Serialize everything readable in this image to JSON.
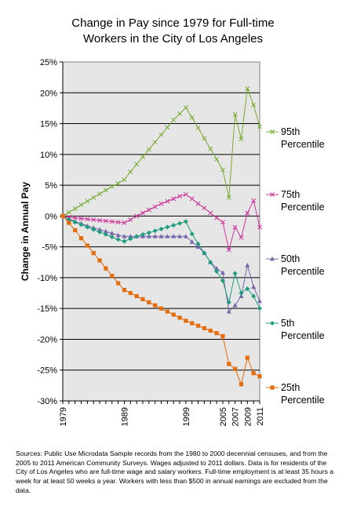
{
  "chart_data": {
    "type": "line",
    "title_lines": [
      "Change in Pay since 1979 for Full-time",
      "Workers in the City of Los Angeles"
    ],
    "ylabel": "Change in Annual Pay",
    "xlabel": "",
    "ylim": [
      -30,
      25
    ],
    "y_ticks": [
      25,
      20,
      15,
      10,
      5,
      0,
      -5,
      -10,
      -15,
      -20,
      -25,
      -30
    ],
    "y_tick_labels": [
      "25%",
      "20%",
      "15%",
      "10%",
      "5%",
      "0%",
      "-5%",
      "-10%",
      "-15%",
      "-20%",
      "-25%",
      "-30%"
    ],
    "x_ticks": [
      1979,
      1989,
      1999,
      2005,
      2007,
      2009,
      2011
    ],
    "x_tick_labels": [
      "1979",
      "1989",
      "1999",
      "2005",
      "2007",
      "2009",
      "2011"
    ],
    "grid": true,
    "legend_position": "right",
    "series": [
      {
        "name_lines": [
          "95th",
          "Percentile"
        ],
        "color": "#77AC30",
        "marker": "x",
        "x": [
          1979,
          1980,
          1981,
          1982,
          1983,
          1984,
          1985,
          1986,
          1987,
          1988,
          1989,
          1990,
          1991,
          1992,
          1993,
          1994,
          1995,
          1996,
          1997,
          1998,
          1999,
          2000,
          2001,
          2002,
          2003,
          2004,
          2005,
          2006,
          2007,
          2008,
          2009,
          2010,
          2011
        ],
        "values": [
          0,
          0.6,
          1.2,
          1.8,
          2.4,
          3.0,
          3.6,
          4.2,
          4.8,
          5.3,
          5.9,
          7.2,
          8.4,
          9.6,
          10.8,
          12.0,
          13.2,
          14.4,
          15.6,
          16.6,
          17.6,
          16.0,
          14.3,
          12.6,
          10.9,
          9.2,
          7.5,
          3.0,
          16.5,
          12.5,
          20.7,
          18.0,
          14.5
        ]
      },
      {
        "name_lines": [
          "75th",
          "Percentile"
        ],
        "color": "#CC3399",
        "marker": "x",
        "x": [
          1979,
          1980,
          1981,
          1982,
          1983,
          1984,
          1985,
          1986,
          1987,
          1988,
          1989,
          1990,
          1991,
          1992,
          1993,
          1994,
          1995,
          1996,
          1997,
          1998,
          1999,
          2000,
          2001,
          2002,
          2003,
          2004,
          2005,
          2006,
          2007,
          2008,
          2009,
          2010,
          2011
        ],
        "values": [
          0,
          -0.2,
          -0.3,
          -0.4,
          -0.5,
          -0.6,
          -0.7,
          -0.8,
          -0.9,
          -1.0,
          -1.1,
          -0.6,
          0.0,
          0.5,
          1.0,
          1.5,
          2.0,
          2.4,
          2.8,
          3.2,
          3.5,
          2.8,
          2.0,
          1.3,
          0.5,
          -0.3,
          -1.0,
          -5.5,
          -1.8,
          -3.5,
          0.5,
          2.5,
          -1.8
        ]
      },
      {
        "name_lines": [
          "50th",
          "Percentile"
        ],
        "color": "#7766AA",
        "marker": "triangle",
        "x": [
          1979,
          1980,
          1981,
          1982,
          1983,
          1984,
          1985,
          1986,
          1987,
          1988,
          1989,
          1990,
          1991,
          1992,
          1993,
          1994,
          1995,
          1996,
          1997,
          1998,
          1999,
          2000,
          2001,
          2002,
          2003,
          2004,
          2005,
          2006,
          2007,
          2008,
          2009,
          2010,
          2011
        ],
        "values": [
          0,
          -0.5,
          -0.9,
          -1.2,
          -1.6,
          -1.9,
          -2.2,
          -2.5,
          -2.8,
          -3.1,
          -3.3,
          -3.3,
          -3.3,
          -3.3,
          -3.3,
          -3.3,
          -3.3,
          -3.3,
          -3.3,
          -3.3,
          -3.3,
          -4.2,
          -5.0,
          -6.0,
          -7.5,
          -8.5,
          -9.2,
          -15.5,
          -14.5,
          -13.0,
          -8.0,
          -11.5,
          -13.8
        ]
      },
      {
        "name_lines": [
          "5th",
          "Percentile"
        ],
        "color": "#1E9E7E",
        "marker": "diamond",
        "x": [
          1979,
          1980,
          1981,
          1982,
          1983,
          1984,
          1985,
          1986,
          1987,
          1988,
          1989,
          1990,
          1991,
          1992,
          1993,
          1994,
          1995,
          1996,
          1997,
          1998,
          1999,
          2000,
          2001,
          2002,
          2003,
          2004,
          2005,
          2006,
          2007,
          2008,
          2009,
          2010,
          2011
        ],
        "values": [
          0,
          -0.6,
          -1.0,
          -1.4,
          -1.8,
          -2.2,
          -2.6,
          -3.0,
          -3.4,
          -3.8,
          -4.1,
          -3.7,
          -3.3,
          -3.0,
          -2.7,
          -2.4,
          -2.1,
          -1.8,
          -1.5,
          -1.2,
          -0.9,
          -2.9,
          -4.5,
          -6.0,
          -7.5,
          -9.0,
          -10.5,
          -14.0,
          -9.3,
          -12.5,
          -11.8,
          -13.0,
          -15.0
        ]
      },
      {
        "name_lines": [
          "25th",
          "Percentile"
        ],
        "color": "#E46C0A",
        "marker": "square",
        "x": [
          1979,
          1980,
          1981,
          1982,
          1983,
          1984,
          1985,
          1986,
          1987,
          1988,
          1989,
          1990,
          1991,
          1992,
          1993,
          1994,
          1995,
          1996,
          1997,
          1998,
          1999,
          2000,
          2001,
          2002,
          2003,
          2004,
          2005,
          2006,
          2007,
          2008,
          2009,
          2010,
          2011
        ],
        "values": [
          0,
          -1.1,
          -2.3,
          -3.6,
          -4.8,
          -6.0,
          -7.2,
          -8.5,
          -9.7,
          -10.9,
          -12.0,
          -12.5,
          -13.0,
          -13.5,
          -14.0,
          -14.5,
          -15.0,
          -15.5,
          -16.0,
          -16.5,
          -17.0,
          -17.4,
          -17.8,
          -18.2,
          -18.6,
          -19.0,
          -19.5,
          -24.0,
          -24.8,
          -27.3,
          -23.0,
          -25.5,
          -26.0
        ]
      }
    ]
  },
  "sources_text": "Sources: Public Use Microdata Sample records from the 1980 to 2000 decennial censuses, and from the 2005 to 2011 American Community Surveys. Wages adjusted to 2011 dollars.  Data is for residents of the City of Los Angeles who are full-time wage and salary workers.  Full-time employment is at least 35 hours a week for at least 50 weeks a year. Workers with less than $500 in annual earnings are excluded from the data."
}
